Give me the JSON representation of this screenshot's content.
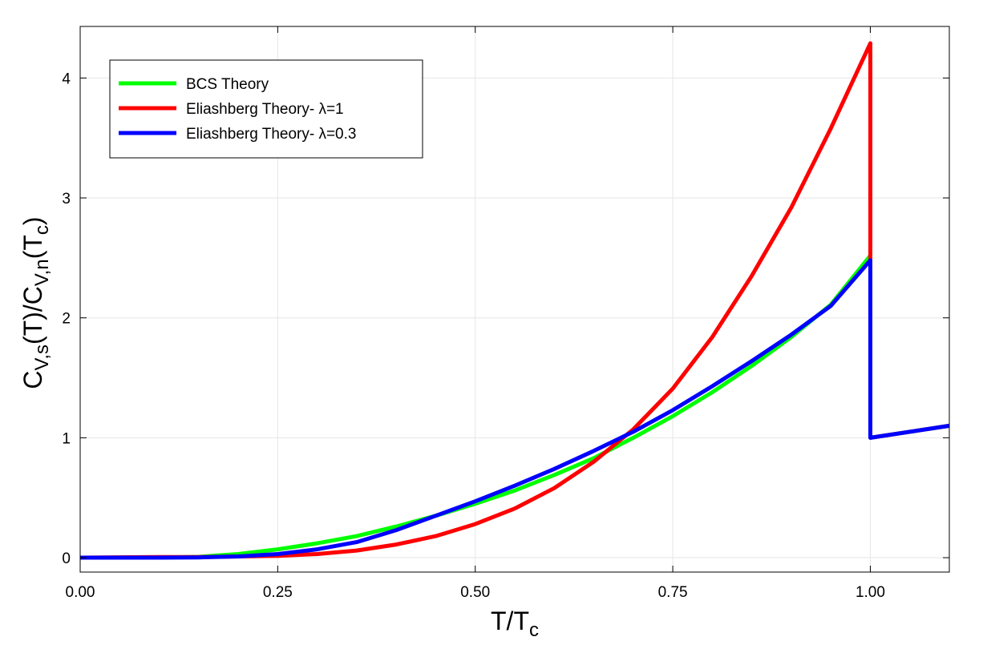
{
  "chart_data": {
    "type": "line",
    "title": "",
    "xlabel": {
      "main": "T/T",
      "sub": "c"
    },
    "ylabel": {
      "parts": [
        {
          "t": "C",
          "s": "main"
        },
        {
          "t": "V,s",
          "s": "sub"
        },
        {
          "t": "(T)/C",
          "s": "main"
        },
        {
          "t": "V,n",
          "s": "sub"
        },
        {
          "t": "(T",
          "s": "main"
        },
        {
          "t": "c",
          "s": "sub"
        },
        {
          "t": ")",
          "s": "main"
        }
      ]
    },
    "xlim": [
      0,
      1.1
    ],
    "ylim": [
      -0.12,
      4.43
    ],
    "xticks": [
      0,
      0.25,
      0.5,
      0.75,
      1.0
    ],
    "xtick_labels": [
      "0.00",
      "0.25",
      "0.50",
      "0.75",
      "1.00"
    ],
    "yticks": [
      0,
      1,
      2,
      3,
      4
    ],
    "ytick_labels": [
      "0",
      "1",
      "2",
      "3",
      "4"
    ],
    "grid": true,
    "legend_position": "top-left",
    "series": [
      {
        "name": "BCS Theory",
        "color": "#00ff00",
        "points": [
          [
            0,
            0
          ],
          [
            0.05,
            0
          ],
          [
            0.1,
            0.001
          ],
          [
            0.15,
            0.007
          ],
          [
            0.2,
            0.03
          ],
          [
            0.25,
            0.07
          ],
          [
            0.3,
            0.12
          ],
          [
            0.35,
            0.18
          ],
          [
            0.4,
            0.26
          ],
          [
            0.45,
            0.35
          ],
          [
            0.5,
            0.45
          ],
          [
            0.55,
            0.56
          ],
          [
            0.6,
            0.69
          ],
          [
            0.65,
            0.83
          ],
          [
            0.7,
            1.0
          ],
          [
            0.75,
            1.18
          ],
          [
            0.8,
            1.38
          ],
          [
            0.85,
            1.6
          ],
          [
            0.9,
            1.84
          ],
          [
            0.95,
            2.11
          ],
          [
            1.0,
            2.52
          ],
          [
            1.0,
            1.0
          ],
          [
            1.1,
            1.1
          ]
        ]
      },
      {
        "name": "Eliashberg Theory- λ=1",
        "color": "#ff0000",
        "points": [
          [
            0,
            0
          ],
          [
            0.1,
            0.005
          ],
          [
            0.15,
            0.005
          ],
          [
            0.2,
            0.01
          ],
          [
            0.25,
            0.015
          ],
          [
            0.3,
            0.03
          ],
          [
            0.35,
            0.06
          ],
          [
            0.4,
            0.11
          ],
          [
            0.45,
            0.18
          ],
          [
            0.5,
            0.28
          ],
          [
            0.55,
            0.41
          ],
          [
            0.6,
            0.58
          ],
          [
            0.65,
            0.8
          ],
          [
            0.7,
            1.07
          ],
          [
            0.75,
            1.41
          ],
          [
            0.8,
            1.84
          ],
          [
            0.85,
            2.35
          ],
          [
            0.9,
            2.92
          ],
          [
            0.95,
            3.58
          ],
          [
            1.0,
            4.29
          ],
          [
            1.0,
            1.0
          ],
          [
            1.1,
            1.1
          ]
        ]
      },
      {
        "name": "Eliashberg Theory- λ=0.3",
        "color": "#0000ff",
        "points": [
          [
            0,
            0
          ],
          [
            0.1,
            0
          ],
          [
            0.15,
            0.002
          ],
          [
            0.2,
            0.01
          ],
          [
            0.25,
            0.03
          ],
          [
            0.3,
            0.07
          ],
          [
            0.35,
            0.13
          ],
          [
            0.4,
            0.23
          ],
          [
            0.45,
            0.35
          ],
          [
            0.5,
            0.47
          ],
          [
            0.55,
            0.6
          ],
          [
            0.6,
            0.74
          ],
          [
            0.65,
            0.89
          ],
          [
            0.7,
            1.05
          ],
          [
            0.75,
            1.23
          ],
          [
            0.8,
            1.43
          ],
          [
            0.85,
            1.64
          ],
          [
            0.9,
            1.86
          ],
          [
            0.95,
            2.1
          ],
          [
            1.0,
            2.48
          ],
          [
            1.0,
            1.0
          ],
          [
            1.1,
            1.1
          ]
        ]
      }
    ]
  }
}
